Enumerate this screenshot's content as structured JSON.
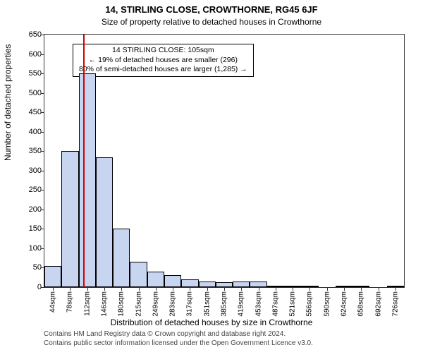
{
  "header": {
    "address_title": "14, STIRLING CLOSE, CROWTHORNE, RG45 6JF",
    "subtitle": "Size of property relative to detached houses in Crowthorne"
  },
  "axes": {
    "ylabel": "Number of detached properties",
    "xlabel": "Distribution of detached houses by size in Crowthorne",
    "ylim": [
      0,
      650
    ],
    "ytick_step": 50,
    "grid_color": "#333333",
    "background_color": "#ffffff"
  },
  "histogram": {
    "type": "histogram",
    "bar_fill": "#c8d5f0",
    "bar_border": "#000000",
    "bin_labels": [
      "44sqm",
      "78sqm",
      "112sqm",
      "146sqm",
      "180sqm",
      "215sqm",
      "249sqm",
      "283sqm",
      "317sqm",
      "351sqm",
      "385sqm",
      "419sqm",
      "453sqm",
      "487sqm",
      "521sqm",
      "556sqm",
      "590sqm",
      "624sqm",
      "658sqm",
      "692sqm",
      "726sqm"
    ],
    "values": [
      55,
      350,
      550,
      335,
      150,
      65,
      40,
      30,
      20,
      15,
      12,
      15,
      15,
      3,
      3,
      2,
      0,
      2,
      2,
      0,
      2
    ]
  },
  "marker": {
    "position_bin_index": 1.8,
    "color": "#d40000"
  },
  "annotation": {
    "line1": "14 STIRLING CLOSE: 105sqm",
    "line2": "← 19% of detached houses are smaller (296)",
    "line3": "80% of semi-detached houses are larger (1,285) →"
  },
  "footnote": {
    "line1": "Contains HM Land Registry data © Crown copyright and database right 2024.",
    "line2": "Contains public sector information licensed under the Open Government Licence v3.0."
  }
}
